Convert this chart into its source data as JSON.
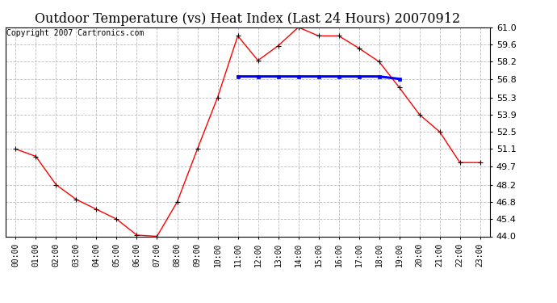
{
  "title": "Outdoor Temperature (vs) Heat Index (Last 24 Hours) 20070912",
  "copyright": "Copyright 2007 Cartronics.com",
  "hours": [
    "00:00",
    "01:00",
    "02:00",
    "03:00",
    "04:00",
    "05:00",
    "06:00",
    "07:00",
    "08:00",
    "09:00",
    "10:00",
    "11:00",
    "12:00",
    "13:00",
    "14:00",
    "15:00",
    "16:00",
    "17:00",
    "18:00",
    "19:00",
    "20:00",
    "21:00",
    "22:00",
    "23:00"
  ],
  "temp": [
    51.1,
    50.5,
    48.2,
    47.0,
    46.2,
    45.4,
    44.1,
    44.0,
    46.8,
    51.1,
    55.3,
    60.3,
    58.3,
    59.5,
    61.0,
    60.3,
    60.3,
    59.3,
    58.2,
    56.1,
    53.9,
    52.5,
    50.0,
    50.0
  ],
  "heat": [
    null,
    null,
    null,
    null,
    null,
    null,
    null,
    null,
    null,
    null,
    null,
    57.0,
    57.0,
    57.0,
    57.0,
    57.0,
    57.0,
    57.0,
    57.0,
    56.8,
    null,
    null,
    null,
    null
  ],
  "temp_color": "#FF0000",
  "heat_color": "#0000FF",
  "background_color": "#FFFFFF",
  "plot_bg_color": "#FFFFFF",
  "grid_color": "#BBBBBB",
  "ylim": [
    44.0,
    61.0
  ],
  "yticks": [
    44.0,
    45.4,
    46.8,
    48.2,
    49.7,
    51.1,
    52.5,
    53.9,
    55.3,
    56.8,
    58.2,
    59.6,
    61.0
  ],
  "title_fontsize": 11.5,
  "copyright_fontsize": 7.0
}
